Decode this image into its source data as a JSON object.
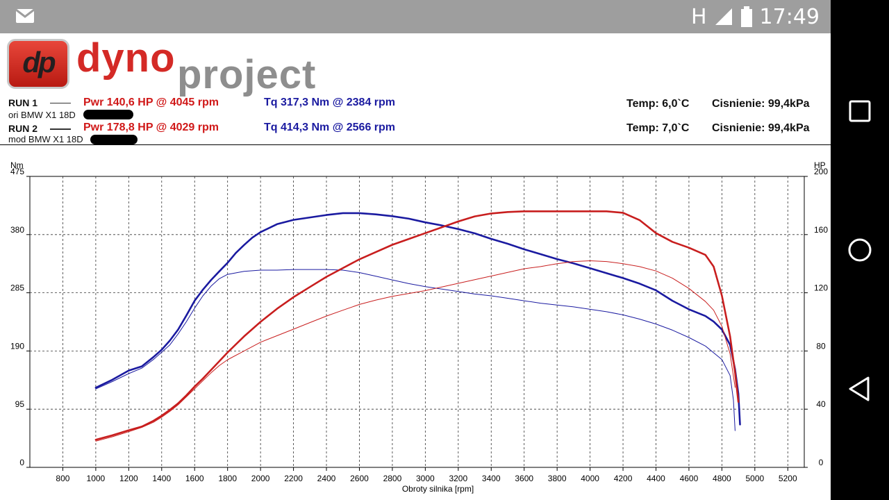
{
  "status_bar": {
    "network": "H",
    "time": "17:49",
    "icons": [
      "mail-icon",
      "signal-icon",
      "battery-icon"
    ]
  },
  "nav_bar": {
    "icons": [
      "square-recents-icon",
      "circle-home-icon",
      "triangle-back-icon"
    ]
  },
  "logo": {
    "mark": "dp",
    "word1": "dyno",
    "word2": "project"
  },
  "runs": [
    {
      "label": "RUN 1",
      "pwr": "Pwr  140,6 HP @ 4045 rpm",
      "tq": "Tq 317,3 Nm @ 2384 rpm",
      "desc": "ori BMW X1 18D",
      "temp": "Temp: 6,0`C",
      "pressure": "Cisnienie: 99,4kPa"
    },
    {
      "label": "RUN 2",
      "pwr": "Pwr  178,8 HP @ 4029 rpm",
      "tq": "Tq 414,3 Nm @ 2566 rpm",
      "desc": "mod BMW X1 18D",
      "temp": "Temp: 7,0`C",
      "pressure": "Cisnienie: 99,4kPa"
    }
  ],
  "colors": {
    "power": "#c81e1e",
    "torque": "#1a1aa0",
    "grid": "#333333"
  },
  "chart_data": {
    "type": "line",
    "xlabel": "Obroty silnika [rpm]",
    "ylabel_left": "Nm",
    "ylabel_right": "HP",
    "xlim": [
      600,
      5300
    ],
    "xticks": [
      800,
      1000,
      1200,
      1400,
      1600,
      1800,
      2000,
      2200,
      2400,
      2600,
      2800,
      3000,
      3200,
      3400,
      3600,
      3800,
      4000,
      4200,
      4400,
      4600,
      4800,
      5000,
      5200
    ],
    "ylim_left": [
      0,
      475
    ],
    "yticks_left": [
      0,
      95,
      190,
      285,
      380,
      475
    ],
    "ylim_right": [
      0,
      200
    ],
    "yticks_right": [
      0,
      40,
      80,
      120,
      160,
      200
    ],
    "grid": true,
    "series": [
      {
        "name": "RUN 2",
        "quantity": "torque",
        "axis": "left",
        "weight": "thick",
        "points": [
          [
            1000,
            130
          ],
          [
            1100,
            143
          ],
          [
            1200,
            158
          ],
          [
            1280,
            165
          ],
          [
            1350,
            180
          ],
          [
            1400,
            192
          ],
          [
            1450,
            207
          ],
          [
            1500,
            225
          ],
          [
            1550,
            248
          ],
          [
            1600,
            272
          ],
          [
            1650,
            290
          ],
          [
            1700,
            306
          ],
          [
            1750,
            320
          ],
          [
            1800,
            334
          ],
          [
            1850,
            350
          ],
          [
            1900,
            363
          ],
          [
            1950,
            375
          ],
          [
            2000,
            384
          ],
          [
            2100,
            397
          ],
          [
            2200,
            404
          ],
          [
            2300,
            408
          ],
          [
            2400,
            412
          ],
          [
            2500,
            415
          ],
          [
            2600,
            415
          ],
          [
            2700,
            413
          ],
          [
            2800,
            410
          ],
          [
            2900,
            406
          ],
          [
            3000,
            400
          ],
          [
            3100,
            395
          ],
          [
            3200,
            389
          ],
          [
            3300,
            382
          ],
          [
            3400,
            373
          ],
          [
            3500,
            365
          ],
          [
            3600,
            356
          ],
          [
            3700,
            348
          ],
          [
            3800,
            340
          ],
          [
            3900,
            333
          ],
          [
            4000,
            325
          ],
          [
            4100,
            317
          ],
          [
            4200,
            309
          ],
          [
            4300,
            300
          ],
          [
            4400,
            289
          ],
          [
            4500,
            272
          ],
          [
            4600,
            258
          ],
          [
            4700,
            247
          ],
          [
            4750,
            238
          ],
          [
            4800,
            225
          ],
          [
            4850,
            200
          ],
          [
            4880,
            160
          ],
          [
            4900,
            120
          ],
          [
            4910,
            70
          ]
        ]
      },
      {
        "name": "RUN 1",
        "quantity": "torque",
        "axis": "left",
        "weight": "thin",
        "points": [
          [
            1000,
            128
          ],
          [
            1100,
            140
          ],
          [
            1200,
            153
          ],
          [
            1280,
            162
          ],
          [
            1350,
            176
          ],
          [
            1400,
            188
          ],
          [
            1450,
            200
          ],
          [
            1500,
            218
          ],
          [
            1550,
            238
          ],
          [
            1600,
            260
          ],
          [
            1650,
            280
          ],
          [
            1700,
            296
          ],
          [
            1750,
            308
          ],
          [
            1800,
            315
          ],
          [
            1900,
            320
          ],
          [
            2000,
            322
          ],
          [
            2100,
            322
          ],
          [
            2200,
            323
          ],
          [
            2300,
            323
          ],
          [
            2400,
            323
          ],
          [
            2500,
            322
          ],
          [
            2600,
            318
          ],
          [
            2700,
            312
          ],
          [
            2800,
            306
          ],
          [
            2900,
            300
          ],
          [
            3000,
            295
          ],
          [
            3100,
            291
          ],
          [
            3200,
            287
          ],
          [
            3300,
            283
          ],
          [
            3400,
            280
          ],
          [
            3500,
            276
          ],
          [
            3600,
            272
          ],
          [
            3700,
            268
          ],
          [
            3800,
            265
          ],
          [
            3900,
            262
          ],
          [
            4000,
            258
          ],
          [
            4100,
            254
          ],
          [
            4200,
            249
          ],
          [
            4300,
            242
          ],
          [
            4400,
            234
          ],
          [
            4500,
            224
          ],
          [
            4600,
            212
          ],
          [
            4700,
            198
          ],
          [
            4800,
            176
          ],
          [
            4850,
            150
          ],
          [
            4870,
            110
          ],
          [
            4880,
            60
          ]
        ]
      },
      {
        "name": "RUN 2",
        "quantity": "power",
        "axis": "right",
        "weight": "thick",
        "points": [
          [
            1000,
            19
          ],
          [
            1100,
            22
          ],
          [
            1200,
            25.5
          ],
          [
            1280,
            28
          ],
          [
            1350,
            32
          ],
          [
            1400,
            35.5
          ],
          [
            1450,
            39.5
          ],
          [
            1500,
            44
          ],
          [
            1550,
            49.5
          ],
          [
            1600,
            55.5
          ],
          [
            1650,
            61
          ],
          [
            1700,
            67
          ],
          [
            1750,
            73
          ],
          [
            1800,
            79
          ],
          [
            1900,
            90
          ],
          [
            2000,
            100
          ],
          [
            2100,
            109
          ],
          [
            2200,
            117
          ],
          [
            2300,
            124
          ],
          [
            2400,
            131
          ],
          [
            2500,
            137
          ],
          [
            2600,
            143
          ],
          [
            2700,
            148
          ],
          [
            2800,
            153
          ],
          [
            2900,
            157
          ],
          [
            3000,
            161
          ],
          [
            3100,
            165
          ],
          [
            3200,
            169
          ],
          [
            3300,
            172.5
          ],
          [
            3400,
            174.5
          ],
          [
            3500,
            175.5
          ],
          [
            3600,
            176
          ],
          [
            3700,
            176
          ],
          [
            3800,
            176
          ],
          [
            3900,
            176
          ],
          [
            4000,
            176
          ],
          [
            4100,
            176
          ],
          [
            4200,
            175
          ],
          [
            4300,
            170
          ],
          [
            4400,
            161
          ],
          [
            4500,
            155
          ],
          [
            4600,
            151
          ],
          [
            4700,
            146
          ],
          [
            4750,
            138
          ],
          [
            4800,
            118
          ],
          [
            4850,
            90
          ],
          [
            4880,
            65
          ],
          [
            4900,
            45
          ]
        ]
      },
      {
        "name": "RUN 1",
        "quantity": "power",
        "axis": "right",
        "weight": "thin",
        "points": [
          [
            1000,
            18
          ],
          [
            1100,
            21
          ],
          [
            1200,
            24.5
          ],
          [
            1280,
            27.5
          ],
          [
            1350,
            31
          ],
          [
            1400,
            34.5
          ],
          [
            1450,
            38.5
          ],
          [
            1500,
            43
          ],
          [
            1550,
            48.5
          ],
          [
            1600,
            54
          ],
          [
            1650,
            59.5
          ],
          [
            1700,
            65
          ],
          [
            1750,
            70
          ],
          [
            1800,
            74
          ],
          [
            1900,
            80
          ],
          [
            2000,
            86
          ],
          [
            2100,
            90.5
          ],
          [
            2200,
            95
          ],
          [
            2300,
            99.5
          ],
          [
            2400,
            104
          ],
          [
            2500,
            108
          ],
          [
            2600,
            112
          ],
          [
            2700,
            115
          ],
          [
            2800,
            117.5
          ],
          [
            2900,
            119.5
          ],
          [
            3000,
            121.5
          ],
          [
            3100,
            124
          ],
          [
            3200,
            126.5
          ],
          [
            3300,
            129
          ],
          [
            3400,
            131.5
          ],
          [
            3500,
            134
          ],
          [
            3600,
            136.5
          ],
          [
            3700,
            138
          ],
          [
            3800,
            140
          ],
          [
            3900,
            141.5
          ],
          [
            4000,
            142
          ],
          [
            4100,
            141.5
          ],
          [
            4200,
            140
          ],
          [
            4300,
            138
          ],
          [
            4400,
            135
          ],
          [
            4500,
            130
          ],
          [
            4600,
            123
          ],
          [
            4700,
            114
          ],
          [
            4750,
            108
          ],
          [
            4800,
            97
          ],
          [
            4850,
            78
          ],
          [
            4880,
            55
          ]
        ]
      }
    ]
  }
}
